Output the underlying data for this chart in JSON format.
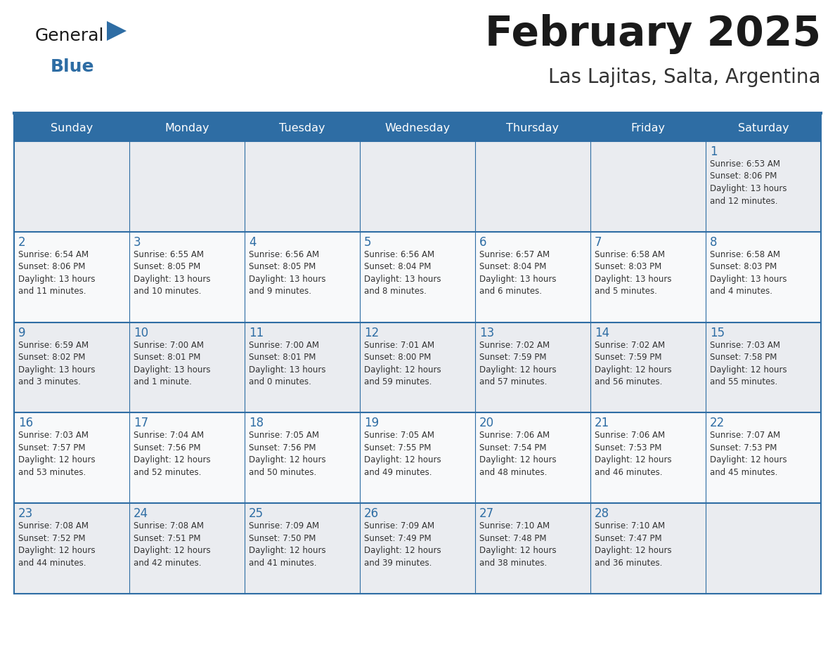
{
  "title": "February 2025",
  "subtitle": "Las Lajitas, Salta, Argentina",
  "header_bg": "#2E6DA4",
  "header_text": "#FFFFFF",
  "cell_bg_odd": "#EAECF0",
  "cell_bg_even": "#F8F9FA",
  "border_color": "#2E6DA4",
  "day_headers": [
    "Sunday",
    "Monday",
    "Tuesday",
    "Wednesday",
    "Thursday",
    "Friday",
    "Saturday"
  ],
  "title_color": "#1a1a1a",
  "subtitle_color": "#333333",
  "num_color": "#2E6DA4",
  "text_color": "#333333",
  "logo_general_color": "#1a1a1a",
  "logo_blue_color": "#2E6DA4",
  "logo_triangle_color": "#2E6DA4",
  "calendar": [
    [
      null,
      null,
      null,
      null,
      null,
      null,
      {
        "day": 1,
        "sunrise": "6:53 AM",
        "sunset": "8:06 PM",
        "daylight": "13 hours\nand 12 minutes."
      }
    ],
    [
      {
        "day": 2,
        "sunrise": "6:54 AM",
        "sunset": "8:06 PM",
        "daylight": "13 hours\nand 11 minutes."
      },
      {
        "day": 3,
        "sunrise": "6:55 AM",
        "sunset": "8:05 PM",
        "daylight": "13 hours\nand 10 minutes."
      },
      {
        "day": 4,
        "sunrise": "6:56 AM",
        "sunset": "8:05 PM",
        "daylight": "13 hours\nand 9 minutes."
      },
      {
        "day": 5,
        "sunrise": "6:56 AM",
        "sunset": "8:04 PM",
        "daylight": "13 hours\nand 8 minutes."
      },
      {
        "day": 6,
        "sunrise": "6:57 AM",
        "sunset": "8:04 PM",
        "daylight": "13 hours\nand 6 minutes."
      },
      {
        "day": 7,
        "sunrise": "6:58 AM",
        "sunset": "8:03 PM",
        "daylight": "13 hours\nand 5 minutes."
      },
      {
        "day": 8,
        "sunrise": "6:58 AM",
        "sunset": "8:03 PM",
        "daylight": "13 hours\nand 4 minutes."
      }
    ],
    [
      {
        "day": 9,
        "sunrise": "6:59 AM",
        "sunset": "8:02 PM",
        "daylight": "13 hours\nand 3 minutes."
      },
      {
        "day": 10,
        "sunrise": "7:00 AM",
        "sunset": "8:01 PM",
        "daylight": "13 hours\nand 1 minute."
      },
      {
        "day": 11,
        "sunrise": "7:00 AM",
        "sunset": "8:01 PM",
        "daylight": "13 hours\nand 0 minutes."
      },
      {
        "day": 12,
        "sunrise": "7:01 AM",
        "sunset": "8:00 PM",
        "daylight": "12 hours\nand 59 minutes."
      },
      {
        "day": 13,
        "sunrise": "7:02 AM",
        "sunset": "7:59 PM",
        "daylight": "12 hours\nand 57 minutes."
      },
      {
        "day": 14,
        "sunrise": "7:02 AM",
        "sunset": "7:59 PM",
        "daylight": "12 hours\nand 56 minutes."
      },
      {
        "day": 15,
        "sunrise": "7:03 AM",
        "sunset": "7:58 PM",
        "daylight": "12 hours\nand 55 minutes."
      }
    ],
    [
      {
        "day": 16,
        "sunrise": "7:03 AM",
        "sunset": "7:57 PM",
        "daylight": "12 hours\nand 53 minutes."
      },
      {
        "day": 17,
        "sunrise": "7:04 AM",
        "sunset": "7:56 PM",
        "daylight": "12 hours\nand 52 minutes."
      },
      {
        "day": 18,
        "sunrise": "7:05 AM",
        "sunset": "7:56 PM",
        "daylight": "12 hours\nand 50 minutes."
      },
      {
        "day": 19,
        "sunrise": "7:05 AM",
        "sunset": "7:55 PM",
        "daylight": "12 hours\nand 49 minutes."
      },
      {
        "day": 20,
        "sunrise": "7:06 AM",
        "sunset": "7:54 PM",
        "daylight": "12 hours\nand 48 minutes."
      },
      {
        "day": 21,
        "sunrise": "7:06 AM",
        "sunset": "7:53 PM",
        "daylight": "12 hours\nand 46 minutes."
      },
      {
        "day": 22,
        "sunrise": "7:07 AM",
        "sunset": "7:53 PM",
        "daylight": "12 hours\nand 45 minutes."
      }
    ],
    [
      {
        "day": 23,
        "sunrise": "7:08 AM",
        "sunset": "7:52 PM",
        "daylight": "12 hours\nand 44 minutes."
      },
      {
        "day": 24,
        "sunrise": "7:08 AM",
        "sunset": "7:51 PM",
        "daylight": "12 hours\nand 42 minutes."
      },
      {
        "day": 25,
        "sunrise": "7:09 AM",
        "sunset": "7:50 PM",
        "daylight": "12 hours\nand 41 minutes."
      },
      {
        "day": 26,
        "sunrise": "7:09 AM",
        "sunset": "7:49 PM",
        "daylight": "12 hours\nand 39 minutes."
      },
      {
        "day": 27,
        "sunrise": "7:10 AM",
        "sunset": "7:48 PM",
        "daylight": "12 hours\nand 38 minutes."
      },
      {
        "day": 28,
        "sunrise": "7:10 AM",
        "sunset": "7:47 PM",
        "daylight": "12 hours\nand 36 minutes."
      },
      null
    ]
  ]
}
